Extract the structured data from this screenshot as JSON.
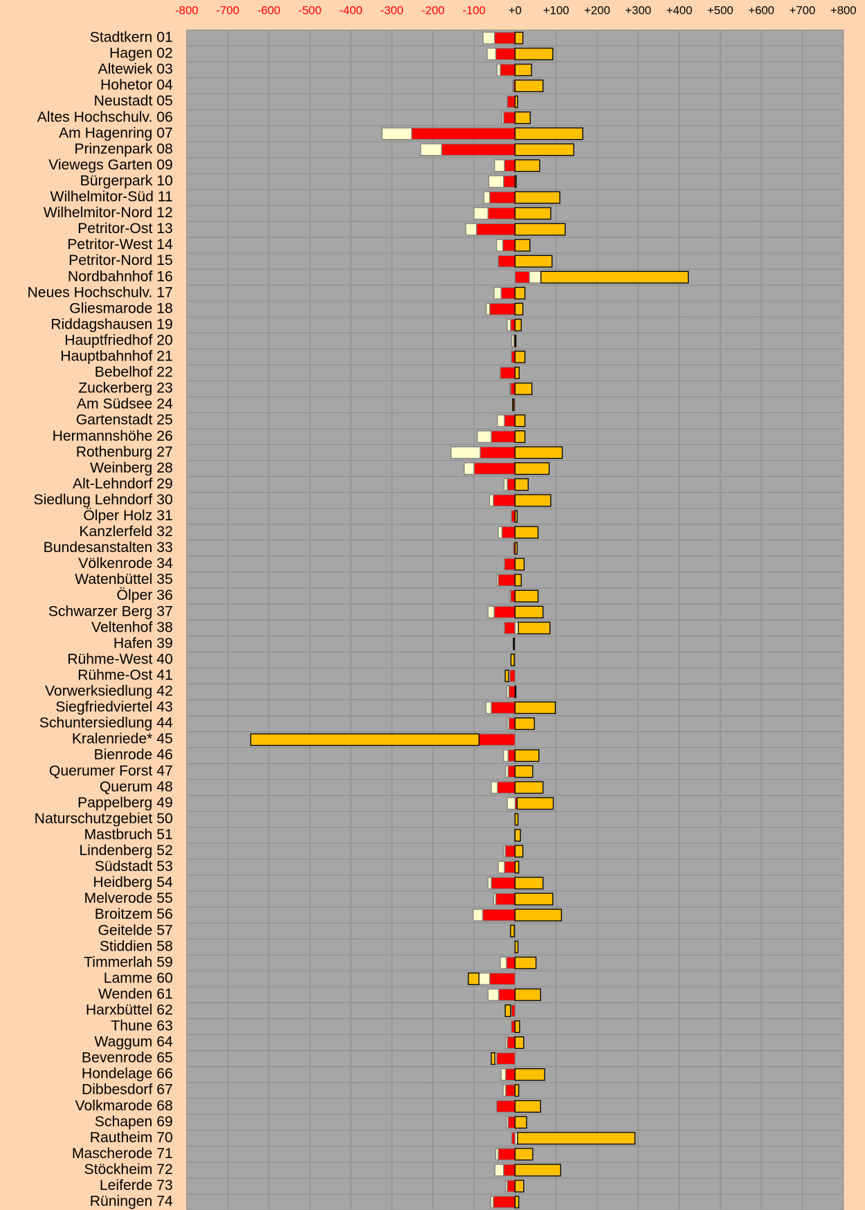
{
  "chart_data": {
    "type": "diverging_stacked_bar",
    "categories": [
      "Stadtkern 01",
      "Hagen 02",
      "Altewiek 03",
      "Hohetor 04",
      "Neustadt 05",
      "Altes Hochschulv. 06",
      "Am Hagenring 07",
      "Prinzenpark 08",
      "Viewegs Garten 09",
      "Bürgerpark 10",
      "Wilhelmitor-Süd 11",
      "Wilhelmitor-Nord 12",
      "Petritor-Ost 13",
      "Petritor-West 14",
      "Petritor-Nord 15",
      "Nordbahnhof 16",
      "Neues Hochschulv. 17",
      "Gliesmarode 18",
      "Riddagshausen 19",
      "Hauptfriedhof 20",
      "Hauptbahnhof 21",
      "Bebelhof 22",
      "Zuckerberg 23",
      "Am Südsee 24",
      "Gartenstadt 25",
      "Hermannshöhe 26",
      "Rothenburg 27",
      "Weinberg 28",
      "Alt-Lehndorf 29",
      "Siedlung Lehndorf 30",
      "Ölper Holz 31",
      "Kanzlerfeld 32",
      "Bundesanstalten 33",
      "Völkenrode 34",
      "Watenbüttel 35",
      "Ölper 36",
      "Schwarzer Berg 37",
      "Veltenhof 38",
      "Hafen 39",
      "Rühme-West 40",
      "Rühme-Ost 41",
      "Vorwerksiedlung 42",
      "Siegfriedviertel 43",
      "Schuntersiedlung 44",
      "Kralenriede* 45",
      "Bienrode 46",
      "Querumer Forst 47",
      "Querum 48",
      "Pappelberg 49",
      "Naturschutzgebiet 50",
      "Mastbruch 51",
      "Lindenberg 52",
      "Südstadt 53",
      "Heidberg 54",
      "Melverode 55",
      "Broitzem 56",
      "Geitelde 57",
      "Stiddien 58",
      "Timmerlah 59",
      "Lamme 60",
      "Wenden 61",
      "Harxbüttel 62",
      "Thune 63",
      "Waggum 64",
      "Bevenrode 65",
      "Hondelage 66",
      "Dibbesdorf 67",
      "Volkmarode 68",
      "Schapen 69",
      "Rautheim 70",
      "Mascherode 71",
      "Stöckheim 72",
      "Leiferde 73",
      "Rüningen 74"
    ],
    "series": [
      {
        "color": "#ff0000",
        "values": [
          -50,
          -47,
          -36,
          -4,
          -19,
          -28,
          -252,
          -179,
          -26,
          -28,
          -62,
          -66,
          -94,
          -30,
          -41,
          35,
          -34,
          -62,
          -11,
          -3,
          -9,
          -36,
          -11,
          -3,
          -26,
          -58,
          -85,
          -100,
          -19,
          -53,
          -9,
          -32,
          -4,
          -26,
          -41,
          -11,
          -51,
          -26,
          -2,
          -2,
          -13,
          -15,
          -58,
          -15,
          -88,
          -17,
          -17,
          -43,
          5,
          0,
          -2,
          -24,
          -26,
          -58,
          -47,
          -79,
          -2,
          0,
          -21,
          -62,
          -40,
          -9,
          -9,
          -19,
          -45,
          -23,
          -23,
          -45,
          -17,
          -8,
          -41,
          -28,
          -19,
          -53
        ]
      },
      {
        "color": "#ffffcc",
        "values": [
          -28,
          -21,
          -8,
          -2,
          0,
          -4,
          -72,
          -51,
          -24,
          -36,
          -14,
          -34,
          -26,
          -15,
          0,
          28,
          -17,
          -8,
          -8,
          -5,
          0,
          0,
          -2,
          0,
          -17,
          -34,
          -71,
          -24,
          -8,
          -9,
          0,
          -9,
          0,
          0,
          -4,
          -3,
          -15,
          8,
          0,
          0,
          -3,
          -5,
          -13,
          -4,
          0,
          -11,
          -6,
          -15,
          -19,
          0,
          0,
          -4,
          -15,
          -8,
          -5,
          -23,
          0,
          0,
          -15,
          -26,
          -26,
          -2,
          0,
          -4,
          -4,
          -11,
          -6,
          0,
          -4,
          6,
          -6,
          -21,
          -4,
          -6
        ]
      },
      {
        "color": "#ffc000",
        "values": [
          19,
          92,
          40,
          68,
          6,
          37,
          165,
          143,
          60,
          3,
          109,
          87,
          122,
          36,
          90,
          359,
          24,
          19,
          15,
          2,
          24,
          10,
          41,
          -3,
          24,
          24,
          115,
          83,
          32,
          87,
          5,
          56,
          5,
          22,
          15,
          56,
          68,
          77,
          -2,
          -8,
          -8,
          2,
          98,
          47,
          -556,
          58,
          43,
          68,
          88,
          7,
          13,
          19,
          9,
          68,
          92,
          113,
          -9,
          7,
          51,
          -26,
          62,
          -13,
          11,
          21,
          -9,
          72,
          9,
          62,
          28,
          286,
          43,
          111,
          21,
          9
        ]
      }
    ],
    "xlim": [
      -800,
      800
    ],
    "xticks": [
      {
        "value": -800,
        "label": "-800"
      },
      {
        "value": -700,
        "label": "-700"
      },
      {
        "value": -600,
        "label": "-600"
      },
      {
        "value": -500,
        "label": "-500"
      },
      {
        "value": -400,
        "label": "-400"
      },
      {
        "value": -300,
        "label": "-300"
      },
      {
        "value": -200,
        "label": "-200"
      },
      {
        "value": -100,
        "label": "-100"
      },
      {
        "value": 0,
        "label": "+0"
      },
      {
        "value": 100,
        "label": "+100"
      },
      {
        "value": 200,
        "label": "+200"
      },
      {
        "value": 300,
        "label": "+300"
      },
      {
        "value": 400,
        "label": "+400"
      },
      {
        "value": 500,
        "label": "+500"
      },
      {
        "value": 600,
        "label": "+600"
      },
      {
        "value": 700,
        "label": "+700"
      },
      {
        "value": 800,
        "label": "+800"
      }
    ],
    "grid": true
  }
}
